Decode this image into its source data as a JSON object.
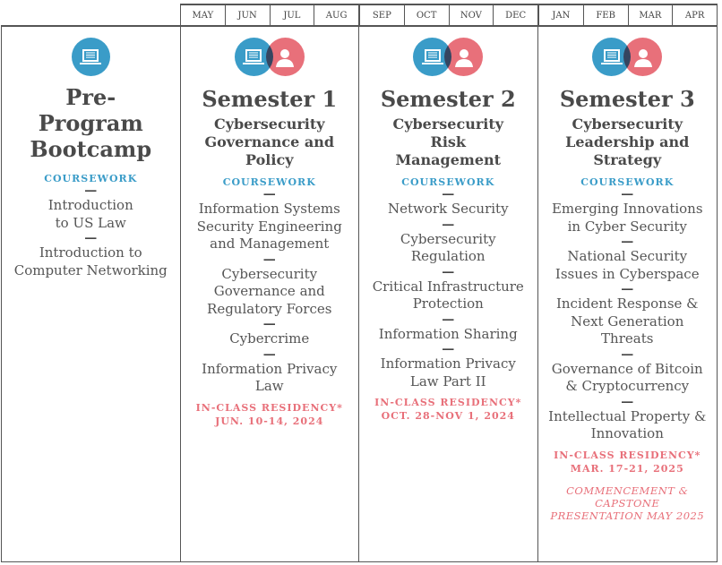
{
  "months": [
    "MAY",
    "JUN",
    "JUL",
    "AUG",
    "SEP",
    "OCT",
    "NOV",
    "DEC",
    "JAN",
    "FEB",
    "MAR",
    "APR"
  ],
  "colors": {
    "blue": "#3a9cc8",
    "red": "#e8707a",
    "text": "#555555"
  },
  "columns": [
    {
      "title": "Pre-\nProgram\nBootcamp",
      "subtitle": "",
      "coursework": "COURSEWORK",
      "courses": [
        "Introduction\nto US Law",
        "Introduction to\nComputer Networking"
      ],
      "residency": "",
      "residency_date": "",
      "commencement": ""
    },
    {
      "title": "Semester 1",
      "subtitle": "Cybersecurity\nGovernance and\nPolicy",
      "coursework": "COURSEWORK",
      "courses": [
        "Information Systems\nSecurity Engineering\nand Management",
        "Cybersecurity\nGovernance and\nRegulatory Forces",
        "Cybercrime",
        "Information Privacy\nLaw"
      ],
      "residency": "IN-CLASS RESIDENCY*",
      "residency_date": "JUN. 10-14, 2024",
      "commencement": ""
    },
    {
      "title": "Semester 2",
      "subtitle": "Cybersecurity\nRisk\nManagement",
      "coursework": "COURSEWORK",
      "courses": [
        "Network Security",
        "Cybersecurity\nRegulation",
        "Critical Infrastructure\nProtection",
        "Information Sharing",
        "Information Privacy\nLaw Part II"
      ],
      "residency": "IN-CLASS RESIDENCY*",
      "residency_date": "OCT. 28-NOV 1, 2024",
      "commencement": ""
    },
    {
      "title": "Semester 3",
      "subtitle": "Cybersecurity\nLeadership and\nStrategy",
      "coursework": "COURSEWORK",
      "courses": [
        "Emerging Innovations\nin Cyber Security",
        "National Security\nIssues in Cyberspace",
        "Incident Response &\nNext Generation\nThreats",
        "Governance of Bitcoin\n& Cryptocurrency",
        "Intellectual Property &\nInnovation"
      ],
      "residency": "IN-CLASS RESIDENCY*",
      "residency_date": "MAR. 17-21, 2025",
      "commencement": "COMMENCEMENT &\nCAPSTONE\nPRESENTATION MAY 2025"
    }
  ]
}
